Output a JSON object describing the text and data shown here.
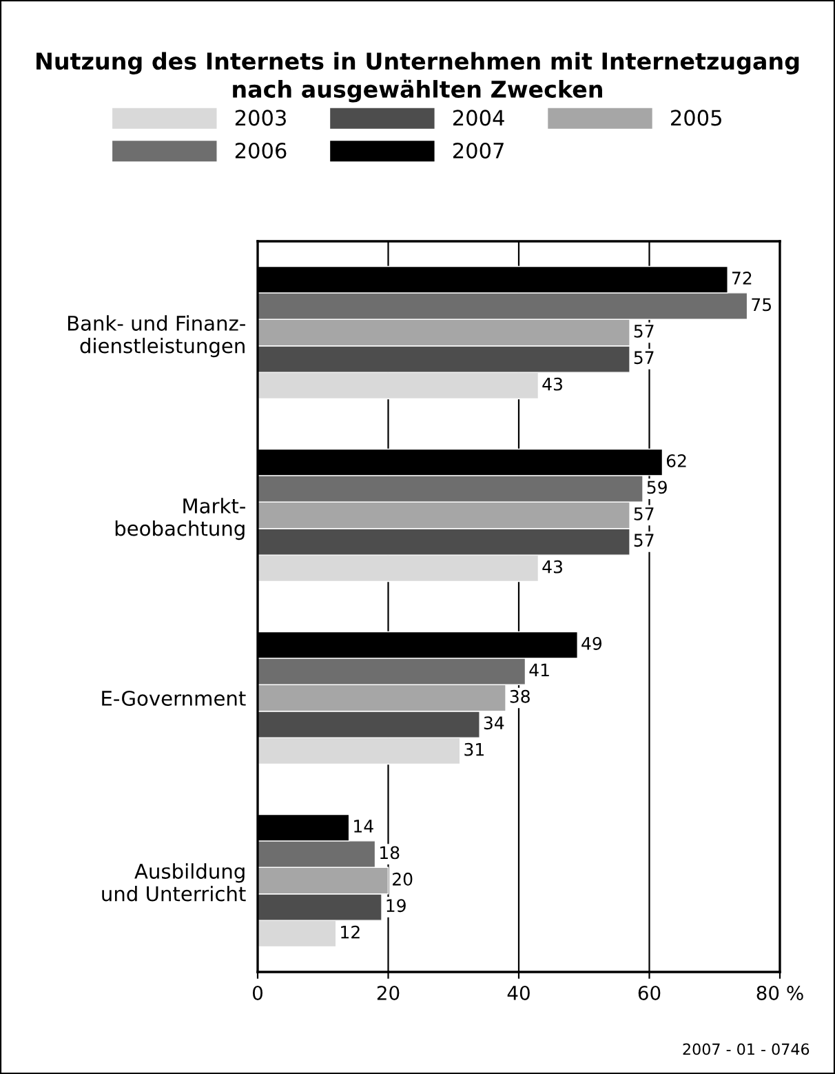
{
  "chart_data": {
    "type": "bar",
    "orientation": "horizontal",
    "title": "Nutzung des Internets in Unternehmen mit Internetzugang\nnach ausgewählten Zwecken",
    "categories": [
      "Bank- und Finanz-\ndienstleistungen",
      "Markt-\nbeobachtung",
      "E-Government",
      "Ausbildung\nund Unterricht"
    ],
    "series": [
      {
        "name": "2003",
        "color": "#d9d9d9",
        "values": [
          43,
          43,
          31,
          12
        ]
      },
      {
        "name": "2004",
        "color": "#4d4d4d",
        "values": [
          57,
          57,
          34,
          19
        ]
      },
      {
        "name": "2005",
        "color": "#a6a6a6",
        "values": [
          57,
          57,
          38,
          20
        ]
      },
      {
        "name": "2006",
        "color": "#6e6e6e",
        "values": [
          75,
          59,
          41,
          18
        ]
      },
      {
        "name": "2007",
        "color": "#000000",
        "values": [
          72,
          62,
          49,
          14
        ]
      }
    ],
    "xlim": [
      0,
      80
    ],
    "xticks": [
      0,
      20,
      40,
      60,
      {
        "value": 80,
        "label": "80 %"
      }
    ],
    "grid": "x",
    "legend": "top",
    "data_labels": true,
    "annotations": [
      "2007 - 01 - 0746"
    ]
  }
}
